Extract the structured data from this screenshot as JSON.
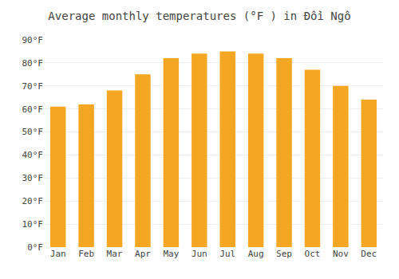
{
  "chart_data": {
    "type": "bar",
    "title": "Average monthly temperatures (°F ) in Đồi Ngô",
    "categories": [
      "Jan",
      "Feb",
      "Mar",
      "Apr",
      "May",
      "Jun",
      "Jul",
      "Aug",
      "Sep",
      "Oct",
      "Nov",
      "Dec"
    ],
    "values": [
      61,
      62,
      68,
      75,
      82,
      84,
      85,
      84,
      82,
      77,
      70,
      64
    ],
    "color": "#F5A623",
    "ylim": [
      0,
      90
    ],
    "yticks": [
      {
        "value": 0,
        "label": "0°F"
      },
      {
        "value": 10,
        "label": "10°F"
      },
      {
        "value": 20,
        "label": "20°F"
      },
      {
        "value": 30,
        "label": "30°F"
      },
      {
        "value": 40,
        "label": "40°F"
      },
      {
        "value": 50,
        "label": "50°F"
      },
      {
        "value": 60,
        "label": "60°F"
      },
      {
        "value": 70,
        "label": "70°F"
      },
      {
        "value": 80,
        "label": "80°F"
      },
      {
        "value": 90,
        "label": "90°F"
      }
    ],
    "grid": true
  }
}
